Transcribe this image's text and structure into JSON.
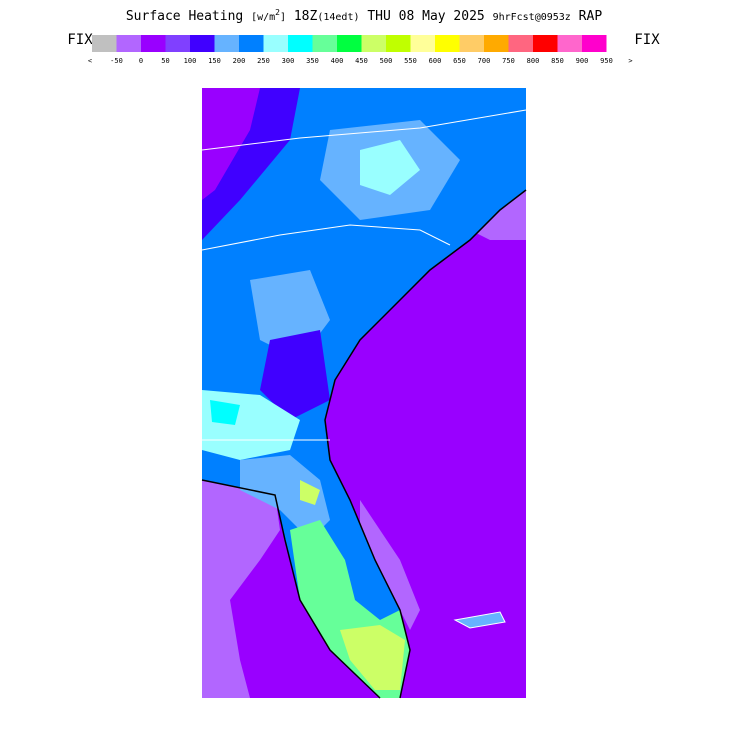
{
  "header": {
    "title_parts": [
      "Surface Heating",
      "[w/m",
      "2",
      "]",
      "18Z",
      "(14edt)",
      "THU 08 May 2025",
      "9hrFcst@0953z",
      "RAP"
    ]
  },
  "legend": {
    "left_button": "FIX",
    "right_button": "FIX",
    "labels": [
      "<",
      "-50",
      "0",
      "50",
      "100",
      "150",
      "200",
      "250",
      "300",
      "350",
      "400",
      "450",
      "500",
      "550",
      "600",
      "650",
      "700",
      "750",
      "800",
      "850",
      "900",
      "950",
      ">"
    ]
  }
}
